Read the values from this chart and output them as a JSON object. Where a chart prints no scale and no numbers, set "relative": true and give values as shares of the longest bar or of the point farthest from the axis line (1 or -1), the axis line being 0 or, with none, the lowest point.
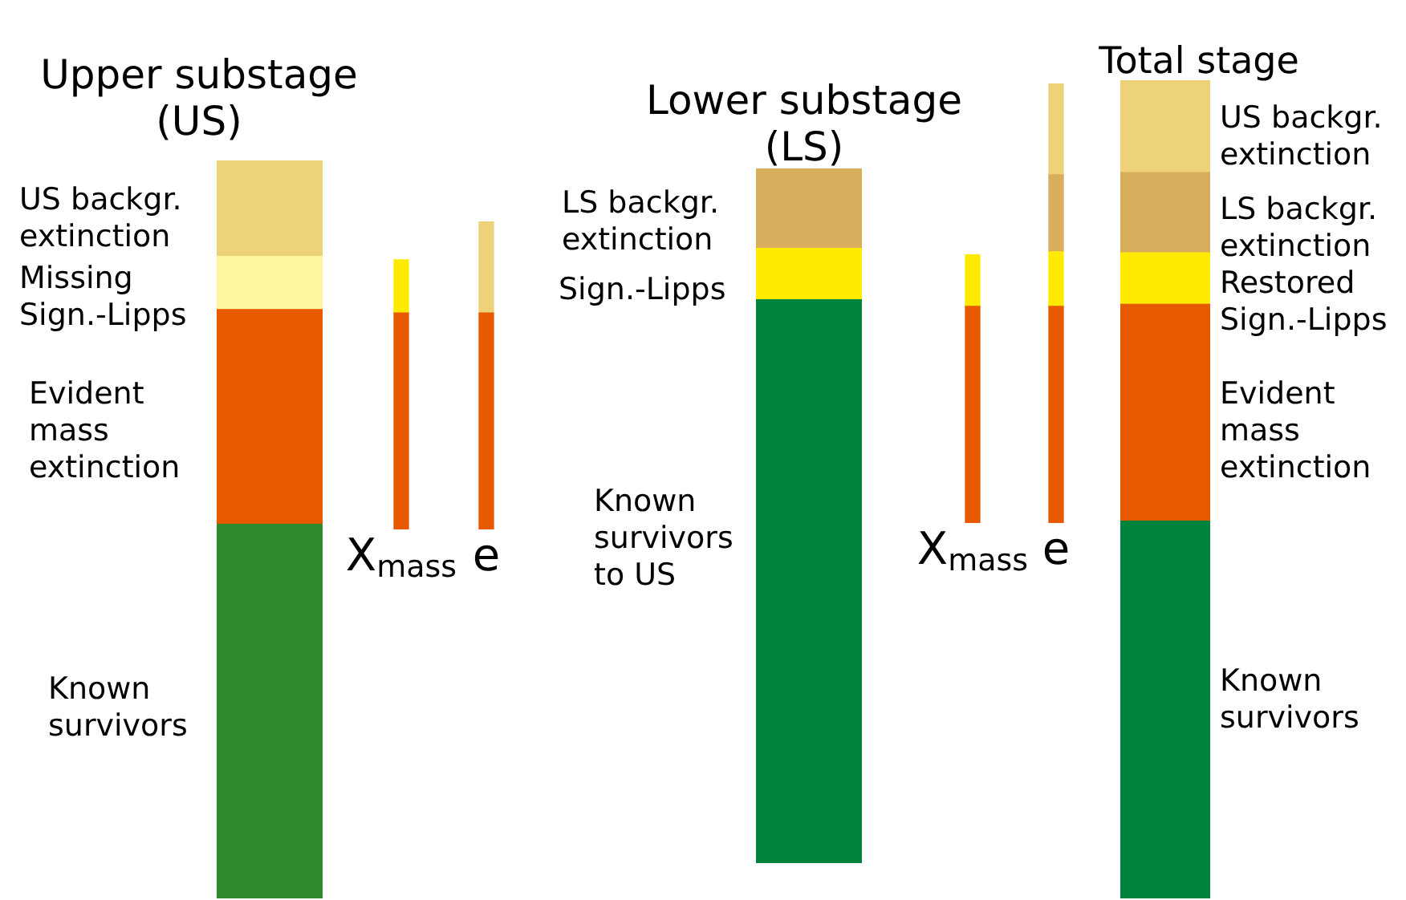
{
  "chart_data": [
    {
      "type": "bar",
      "relative": true,
      "stacked": true,
      "legend": false,
      "categories": [
        null
      ],
      "series": [
        {
          "color": "#2e8b2e",
          "values": [
            0.507
          ]
        },
        {
          "color": "#e85a00",
          "values": [
            0.291
          ]
        },
        {
          "color": "#fff59d",
          "values": [
            0.072
          ]
        },
        {
          "color": "#eed27a",
          "values": [
            0.13
          ]
        }
      ],
      "annotations": [
        "Upper substage\n(US)",
        "US backgr.\nextinction",
        "Missing\nSign.-Lipps",
        "Evident\nmass\nextinction",
        "Known\nsurvivors"
      ]
    },
    {
      "type": "bar",
      "relative": true,
      "stacked": true,
      "legend": false,
      "categories": [
        "X$_{mass}$",
        "e"
      ],
      "series": [
        {
          "color": "#e85a00",
          "values": [
            0.703,
            0.703
          ]
        },
        {
          "color": "#ffea00",
          "values": [
            0.172,
            null
          ]
        },
        {
          "color": "#eed27a",
          "values": [
            null,
            0.297
          ]
        }
      ]
    },
    {
      "type": "bar",
      "relative": true,
      "stacked": true,
      "legend": false,
      "categories": [
        null
      ],
      "series": [
        {
          "color": "#00843d",
          "values": [
            0.811
          ]
        },
        {
          "color": "#ffea00",
          "values": [
            0.074
          ]
        },
        {
          "color": "#d8ae5c",
          "values": [
            0.115
          ]
        }
      ],
      "annotations": [
        "Lower substage\n(LS)",
        "LS backgr.\nextinction",
        "Sign.-Lipps",
        "Known\nsurvivors\nto US"
      ]
    },
    {
      "type": "bar",
      "relative": true,
      "stacked": true,
      "legend": false,
      "categories": [
        "X$_{mass}$",
        "e"
      ],
      "series": [
        {
          "color": "#e85a00",
          "values": [
            0.493,
            0.493
          ]
        },
        {
          "color": "#ffea00",
          "values": [
            0.117,
            0.124
          ]
        },
        {
          "color": "#d8ae5c",
          "values": [
            null,
            0.175
          ]
        },
        {
          "color": "#eed27a",
          "values": [
            null,
            0.208
          ]
        }
      ]
    },
    {
      "type": "bar",
      "relative": true,
      "stacked": true,
      "legend": false,
      "categories": [
        null
      ],
      "series": [
        {
          "color": "#00843d",
          "values": [
            0.461
          ]
        },
        {
          "color": "#e85a00",
          "values": [
            0.265
          ]
        },
        {
          "color": "#ffea00",
          "values": [
            0.063
          ]
        },
        {
          "color": "#d8ae5c",
          "values": [
            0.098
          ]
        },
        {
          "color": "#eed27a",
          "values": [
            0.113
          ]
        }
      ],
      "annotations": [
        "Total stage",
        "US backgr.\nextinction",
        "LS backgr.\nextinction",
        "Restored\nSign.-Lipps",
        "Evident\nmass\nextinction",
        "Known\nsurvivors"
      ]
    }
  ]
}
